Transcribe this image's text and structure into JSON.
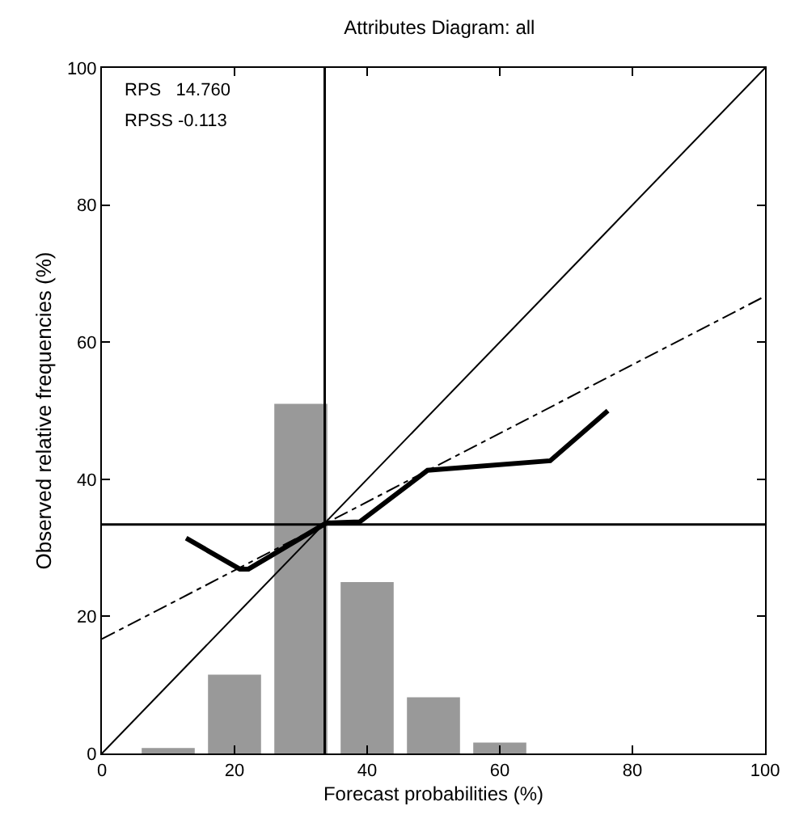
{
  "chart_data": {
    "type": "bar",
    "title": "Attributes Diagram: all",
    "xlabel": "Forecast probabilities (%)",
    "ylabel": "Observed relative frequencies (%)",
    "annotations": [
      "RPS   14.760",
      "RPSS -0.113"
    ],
    "series": [
      {
        "color": "#999999",
        "x": [
          10,
          20,
          30,
          40,
          50,
          60
        ],
        "values": [
          0.8,
          11.5,
          51,
          25,
          8.2,
          1.6
        ]
      },
      {
        "type": "line",
        "color": "#000000",
        "line_style": "solid",
        "x": [
          12.7,
          20.8,
          22.1,
          33.8,
          38.9,
          49.1,
          67.6,
          76.3
        ],
        "values": [
          31.4,
          26.9,
          26.9,
          33.6,
          33.8,
          41.3,
          42.7,
          50.0
        ]
      },
      {
        "type": "line",
        "color": "#000000",
        "line_style": "dashdot",
        "x": [
          0,
          100
        ],
        "values": [
          16.7,
          66.7
        ]
      },
      {
        "type": "line",
        "color": "#000000",
        "line_style": "solid",
        "x": [
          0,
          100
        ],
        "values": [
          0,
          100
        ]
      }
    ],
    "ref_lines": [
      {
        "axis": "x",
        "value": 33.6,
        "color": "#000000"
      },
      {
        "axis": "y",
        "value": 33.4,
        "color": "#000000"
      }
    ],
    "xlim": [
      0,
      100
    ],
    "ylim": [
      0,
      100
    ],
    "xticks": [
      0,
      20,
      40,
      60,
      80,
      100
    ],
    "yticks": [
      0,
      20,
      40,
      60,
      80,
      100
    ]
  }
}
